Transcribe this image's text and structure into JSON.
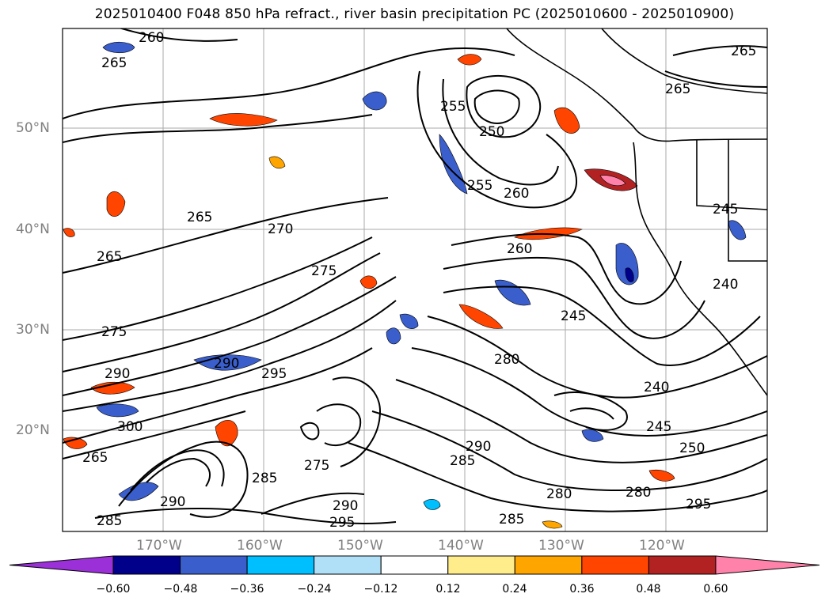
{
  "title": "2025010400 F048 850 hPa refract., river basin precipitation PC (2025010600 - 2025010900)",
  "lat_labels": [
    "50°N",
    "40°N",
    "30°N",
    "20°N"
  ],
  "lon_labels": [
    "170°W",
    "160°W",
    "150°W",
    "140°W",
    "130°W",
    "120°W"
  ],
  "contour_labels": [
    "260",
    "265",
    "265",
    "255",
    "250",
    "255",
    "260",
    "265",
    "265",
    "270",
    "265",
    "275",
    "275",
    "260",
    "280",
    "245",
    "290",
    "295",
    "290",
    "285",
    "280",
    "240",
    "245",
    "300",
    "290",
    "285",
    "290",
    "285",
    "280",
    "295",
    "290",
    "285",
    "295",
    "265",
    "275",
    "250",
    "240",
    "245"
  ],
  "colorbar": {
    "ticks": [
      "−0.60",
      "−0.48",
      "−0.36",
      "−0.24",
      "−0.12",
      "0.12",
      "0.24",
      "0.36",
      "0.48",
      "0.60"
    ],
    "colors": [
      "#9b30d9",
      "#00008b",
      "#3a5fcd",
      "#00bfff",
      "#b0e0f8",
      "#ffffff",
      "#ffec8b",
      "#ffa500",
      "#ff4500",
      "#b22222",
      "#ff82ab"
    ]
  }
}
